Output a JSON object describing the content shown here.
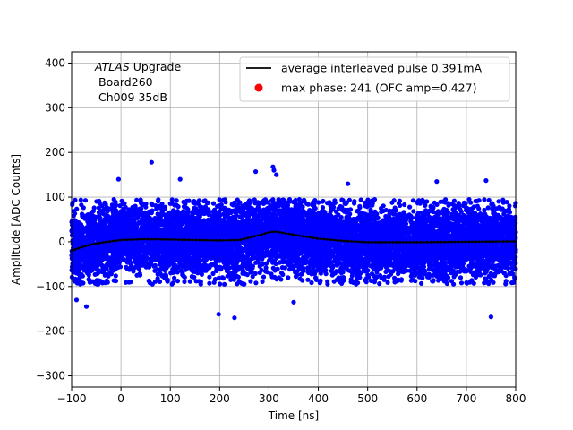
{
  "chart_data": {
    "type": "scatter",
    "title": "",
    "xlabel": "Time [ns]",
    "ylabel": "Amplitude [ADC Counts]",
    "xlim": [
      -100,
      800
    ],
    "ylim": [
      -325,
      425
    ],
    "xticks": [
      -100,
      0,
      100,
      200,
      300,
      400,
      500,
      600,
      700,
      800
    ],
    "xtick_labels": [
      "−100",
      "0",
      "100",
      "200",
      "300",
      "400",
      "500",
      "600",
      "700",
      "800"
    ],
    "yticks": [
      -300,
      -200,
      -100,
      0,
      100,
      200,
      300,
      400
    ],
    "ytick_labels": [
      "−300",
      "−200",
      "−100",
      "0",
      "100",
      "200",
      "300",
      "400"
    ],
    "grid": true,
    "legend_position": "top-right",
    "annotation": {
      "lines": [
        "ATLAS",
        "Upgrade",
        "Board260",
        "Ch009 35dB"
      ]
    },
    "series": [
      {
        "name": "average interleaved pulse 0.391mA",
        "kind": "line",
        "color": "#000000",
        "x": [
          -100,
          -80,
          -60,
          -40,
          -20,
          0,
          50,
          100,
          150,
          200,
          240,
          260,
          280,
          300,
          310,
          330,
          360,
          400,
          450,
          500,
          600,
          700,
          800
        ],
        "y": [
          -20,
          -12,
          -6,
          -2,
          1,
          4,
          6,
          5,
          4,
          3,
          4,
          9,
          15,
          21,
          23,
          20,
          14,
          7,
          2,
          -1,
          -1,
          0,
          1
        ]
      },
      {
        "name": "max phase: 241 (OFC amp=0.427)",
        "kind": "point",
        "color": "#ff0000",
        "x": [],
        "y": []
      },
      {
        "name": "samples",
        "kind": "scatter",
        "color": "#0000ff",
        "x_range": [
          -100,
          800
        ],
        "band": [
          -95,
          95
        ],
        "outliers": {
          "x": [
            -5,
            62,
            120,
            273,
            308,
            310,
            315,
            740,
            640,
            460,
            198,
            230,
            750,
            350,
            -90,
            -70
          ],
          "y": [
            140,
            178,
            140,
            157,
            168,
            160,
            150,
            137,
            135,
            130,
            -162,
            -170,
            -168,
            -135,
            -130,
            -145
          ]
        }
      }
    ]
  }
}
